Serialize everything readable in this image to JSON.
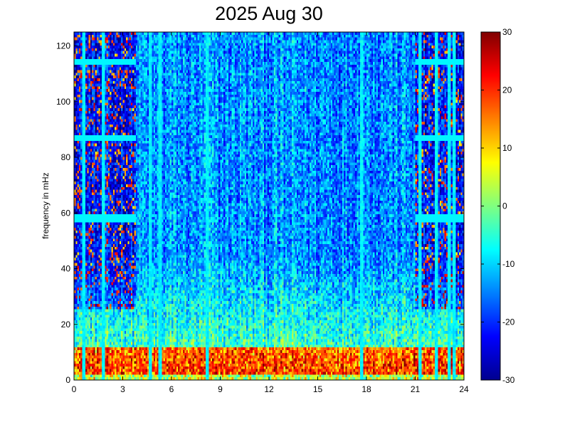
{
  "chart_data": {
    "type": "heatmap",
    "title": "2025 Aug 30",
    "xlabel": "",
    "ylabel": "frequency in mHz",
    "x_range": [
      0,
      24
    ],
    "y_range": [
      0,
      125
    ],
    "x_ticks": [
      0,
      3,
      6,
      9,
      12,
      15,
      18,
      21,
      24
    ],
    "y_ticks": [
      0,
      20,
      40,
      60,
      80,
      100,
      120
    ],
    "colorbar": {
      "range": [
        -30,
        30
      ],
      "ticks": [
        30,
        20,
        10,
        0,
        -10,
        -20,
        -30
      ],
      "colormap": "jet"
    },
    "grid": false,
    "low_frequency_band_mHz": [
      0,
      12
    ],
    "horizontal_lines_mHz": [
      58,
      87,
      114
    ],
    "vertical_lines_hours": [
      0.6,
      1.8,
      4.7,
      5.3,
      8.2,
      17.7,
      21.3,
      22.3,
      23.1,
      23.4
    ]
  }
}
